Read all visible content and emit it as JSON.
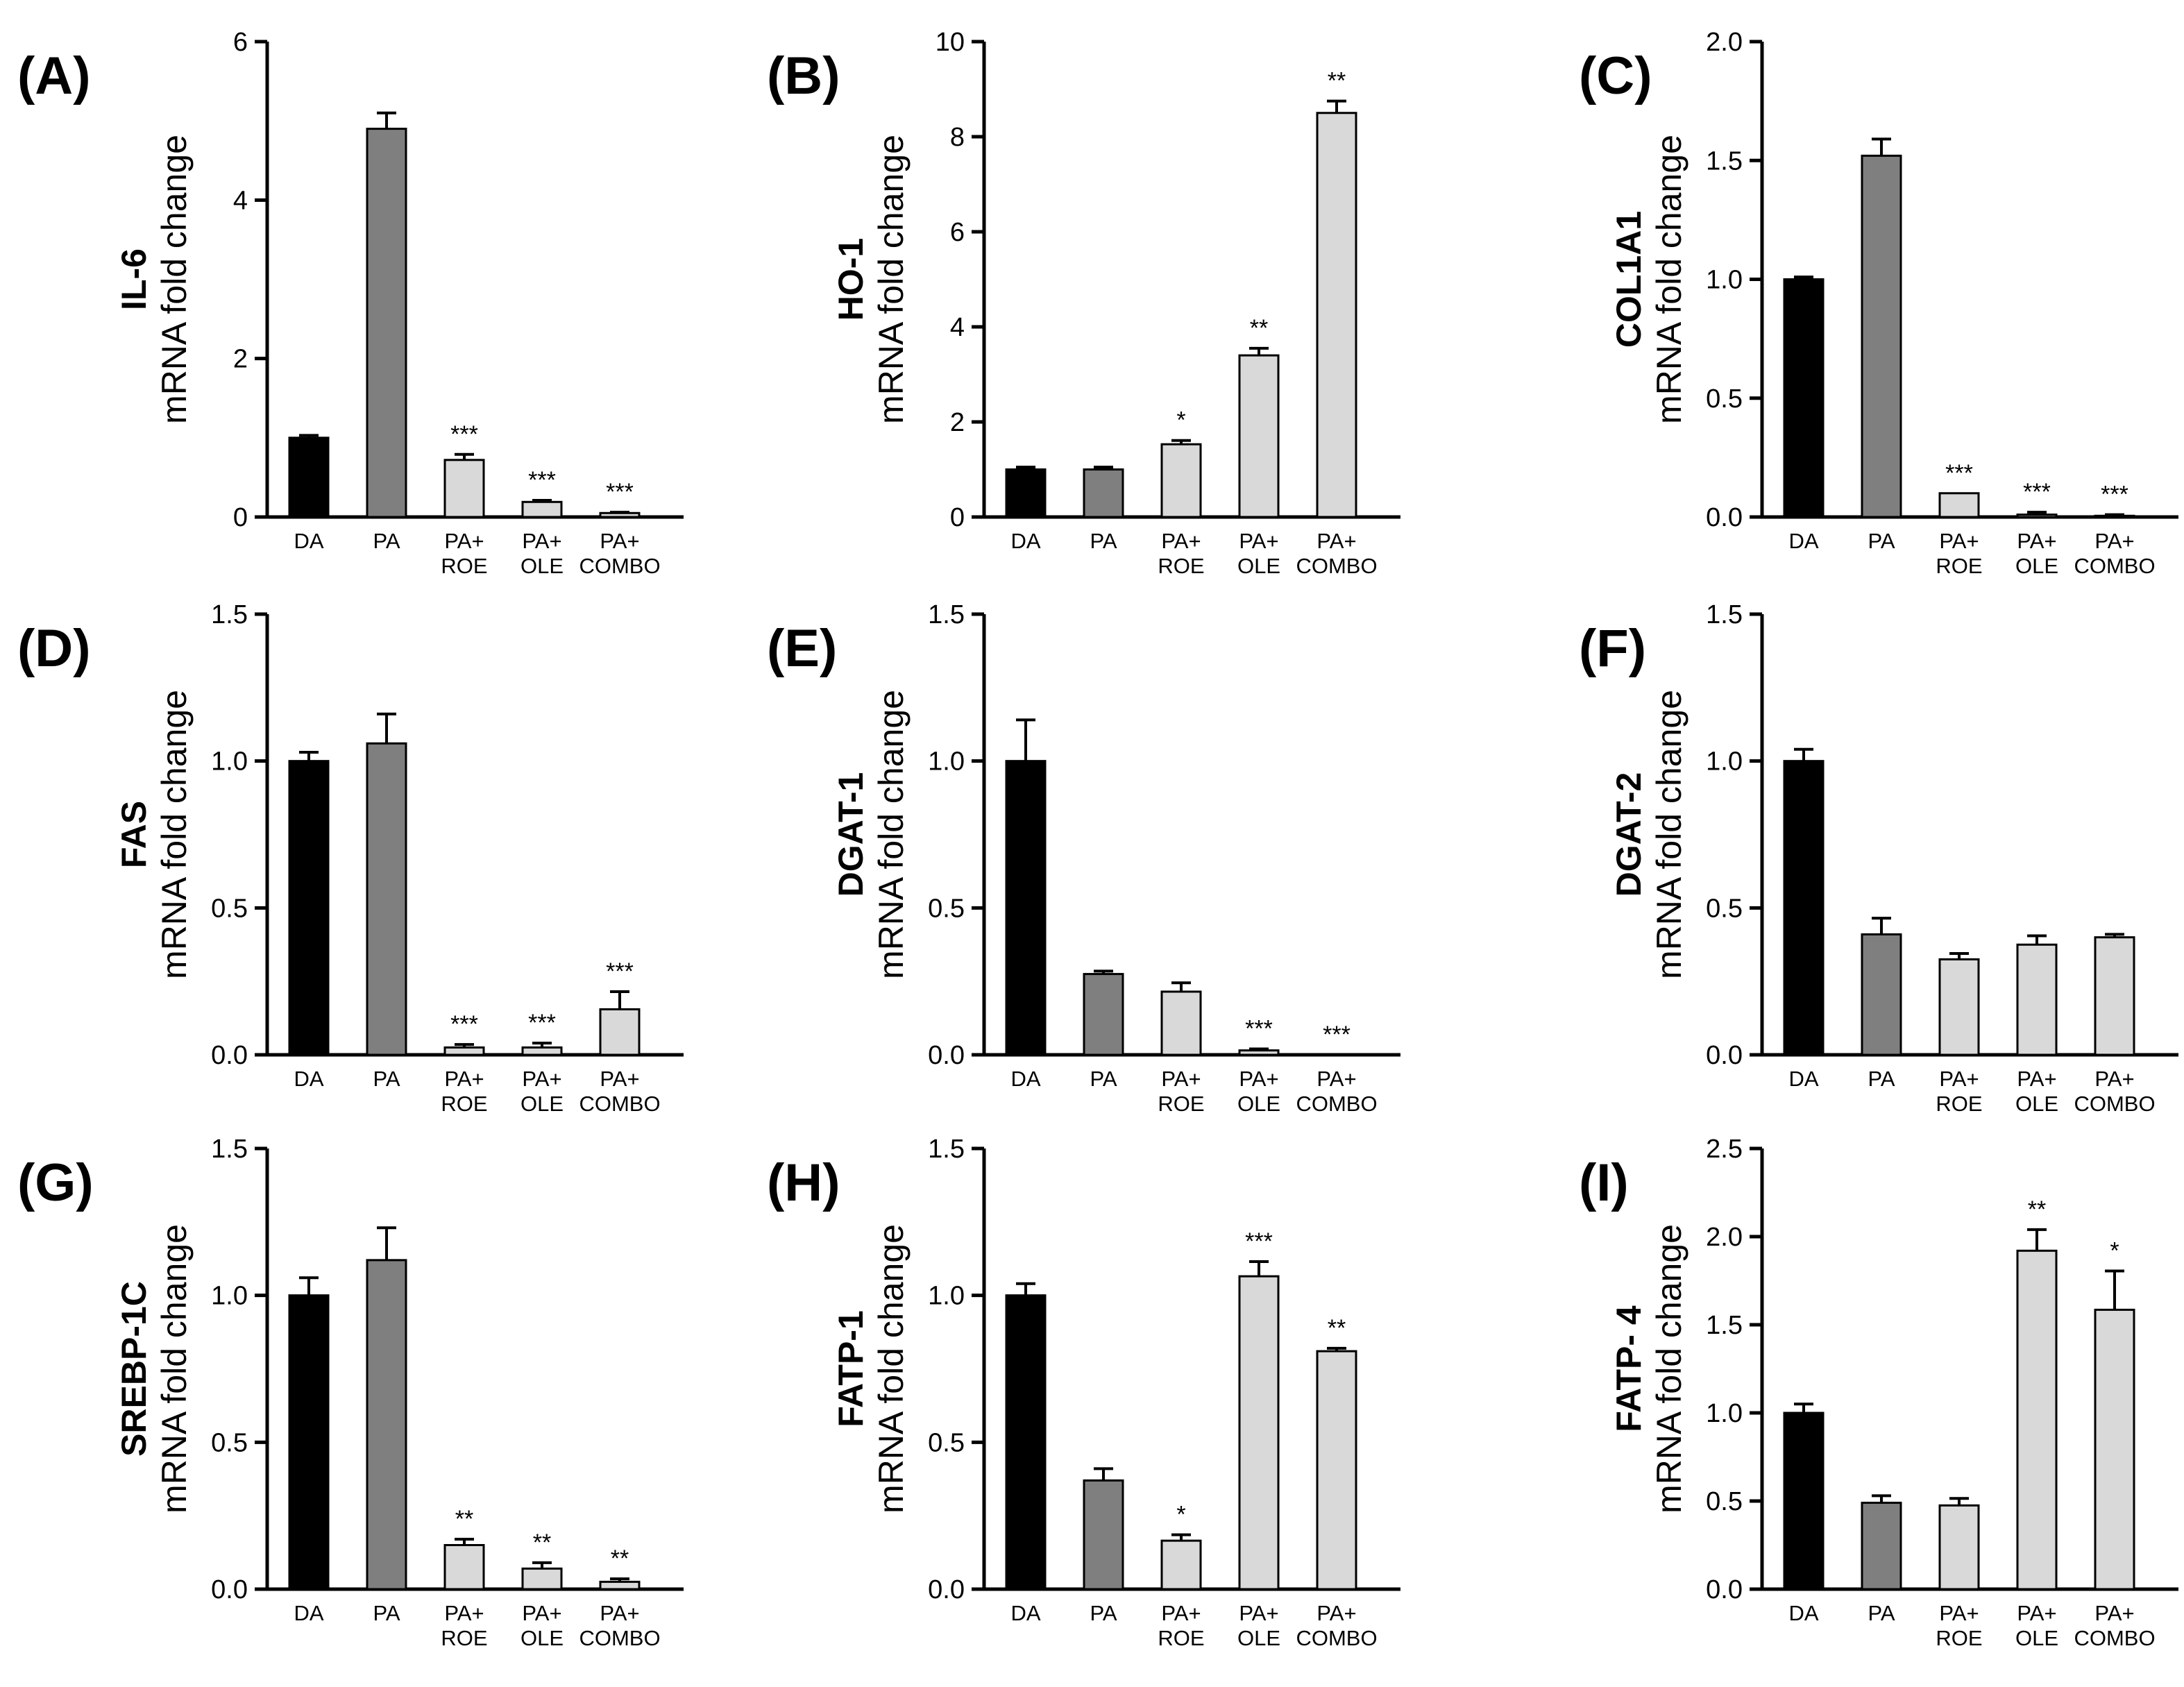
{
  "figure": {
    "axis_unit_label": "mRNA fold change",
    "bar_colors": {
      "DA": "#000000",
      "PA": "#7f7f7f",
      "treatment": "#d9d9d9"
    }
  },
  "chart_data": [
    {
      "type": "bar",
      "panel": "(A)",
      "gene": "IL-6",
      "ylabel": "mRNA fold change",
      "ylim": [
        0,
        6
      ],
      "yticks": [
        "0",
        "2",
        "4",
        "6"
      ],
      "categories": [
        [
          "DA"
        ],
        [
          "PA"
        ],
        [
          "PA+",
          "ROE"
        ],
        [
          "PA+",
          "OLE"
        ],
        [
          "PA+",
          "COMBO"
        ]
      ],
      "values": [
        1.0,
        4.9,
        0.72,
        0.19,
        0.05
      ],
      "errors": [
        0.03,
        0.2,
        0.07,
        0.02,
        0.01
      ],
      "significance": [
        "",
        "",
        "***",
        "***",
        "***"
      ]
    },
    {
      "type": "bar",
      "panel": "(B)",
      "gene": "HO-1",
      "ylabel": "mRNA fold change",
      "ylim": [
        0,
        10
      ],
      "yticks": [
        "0",
        "2",
        "4",
        "6",
        "8",
        "10"
      ],
      "categories": [
        [
          "DA"
        ],
        [
          "PA"
        ],
        [
          "PA+",
          "ROE"
        ],
        [
          "PA+",
          "OLE"
        ],
        [
          "PA+",
          "COMBO"
        ]
      ],
      "values": [
        1.0,
        1.0,
        1.53,
        3.4,
        8.5
      ],
      "errors": [
        0.05,
        0.05,
        0.08,
        0.15,
        0.25
      ],
      "significance": [
        "",
        "",
        "*",
        "**",
        "**"
      ]
    },
    {
      "type": "bar",
      "panel": "(C)",
      "gene": "COL1A1",
      "ylabel": "mRNA fold change",
      "ylim": [
        0,
        2.0
      ],
      "yticks": [
        "0.0",
        "0.5",
        "1.0",
        "1.5",
        "2.0"
      ],
      "categories": [
        [
          "DA"
        ],
        [
          "PA"
        ],
        [
          "PA+",
          "ROE"
        ],
        [
          "PA+",
          "OLE"
        ],
        [
          "PA+",
          "COMBO"
        ]
      ],
      "values": [
        1.0,
        1.52,
        0.1,
        0.01,
        0.005
      ],
      "errors": [
        0.01,
        0.07,
        0.0,
        0.01,
        0.005
      ],
      "significance": [
        "",
        "",
        "***",
        "***",
        "***"
      ]
    },
    {
      "type": "bar",
      "panel": "(D)",
      "gene": "FAS",
      "ylabel": "mRNA fold change",
      "ylim": [
        0,
        1.5
      ],
      "yticks": [
        "0.0",
        "0.5",
        "1.0",
        "1.5"
      ],
      "categories": [
        [
          "DA"
        ],
        [
          "PA"
        ],
        [
          "PA+",
          "ROE"
        ],
        [
          "PA+",
          "OLE"
        ],
        [
          "PA+",
          "COMBO"
        ]
      ],
      "values": [
        1.0,
        1.06,
        0.025,
        0.025,
        0.155
      ],
      "errors": [
        0.03,
        0.1,
        0.01,
        0.015,
        0.06
      ],
      "significance": [
        "",
        "",
        "***",
        "***",
        "***"
      ]
    },
    {
      "type": "bar",
      "panel": "(E)",
      "gene": "DGAT-1",
      "ylabel": "mRNA fold change",
      "ylim": [
        0,
        1.5
      ],
      "yticks": [
        "0.0",
        "0.5",
        "1.0",
        "1.5"
      ],
      "categories": [
        [
          "DA"
        ],
        [
          "PA"
        ],
        [
          "PA+",
          "ROE"
        ],
        [
          "PA+",
          "OLE"
        ],
        [
          "PA+",
          "COMBO"
        ]
      ],
      "values": [
        1.0,
        0.275,
        0.215,
        0.015,
        0.0
      ],
      "errors": [
        0.14,
        0.01,
        0.03,
        0.005,
        0.0
      ],
      "significance": [
        "",
        "",
        "",
        "***",
        "***"
      ]
    },
    {
      "type": "bar",
      "panel": "(F)",
      "gene": "DGAT-2",
      "ylabel": "mRNA fold change",
      "ylim": [
        0,
        1.5
      ],
      "yticks": [
        "0.0",
        "0.5",
        "1.0",
        "1.5"
      ],
      "categories": [
        [
          "DA"
        ],
        [
          "PA"
        ],
        [
          "PA+",
          "ROE"
        ],
        [
          "PA+",
          "OLE"
        ],
        [
          "PA+",
          "COMBO"
        ]
      ],
      "values": [
        1.0,
        0.41,
        0.325,
        0.375,
        0.4
      ],
      "errors": [
        0.04,
        0.055,
        0.02,
        0.03,
        0.01
      ],
      "significance": [
        "",
        "",
        "",
        "",
        ""
      ]
    },
    {
      "type": "bar",
      "panel": "(G)",
      "gene": "SREBP-1C",
      "ylabel": "mRNA fold change",
      "ylim": [
        0,
        1.5
      ],
      "yticks": [
        "0.0",
        "0.5",
        "1.0",
        "1.5"
      ],
      "categories": [
        [
          "DA"
        ],
        [
          "PA"
        ],
        [
          "PA+",
          "ROE"
        ],
        [
          "PA+",
          "OLE"
        ],
        [
          "PA+",
          "COMBO"
        ]
      ],
      "values": [
        1.0,
        1.12,
        0.15,
        0.07,
        0.025
      ],
      "errors": [
        0.06,
        0.11,
        0.02,
        0.02,
        0.01
      ],
      "significance": [
        "",
        "",
        "**",
        "**",
        "**"
      ]
    },
    {
      "type": "bar",
      "panel": "(H)",
      "gene": "FATP-1",
      "ylabel": "mRNA fold change",
      "ylim": [
        0,
        1.5
      ],
      "yticks": [
        "0.0",
        "0.5",
        "1.0",
        "1.5"
      ],
      "categories": [
        [
          "DA"
        ],
        [
          "PA"
        ],
        [
          "PA+",
          "ROE"
        ],
        [
          "PA+",
          "OLE"
        ],
        [
          "PA+",
          "COMBO"
        ]
      ],
      "values": [
        1.0,
        0.37,
        0.165,
        1.065,
        0.81
      ],
      "errors": [
        0.04,
        0.04,
        0.02,
        0.05,
        0.01
      ],
      "significance": [
        "",
        "",
        "*",
        "***",
        "**"
      ]
    },
    {
      "type": "bar",
      "panel": "(I)",
      "gene": "FATP- 4",
      "ylabel": "mRNA fold change",
      "ylim": [
        0,
        2.5
      ],
      "yticks": [
        "0.0",
        "0.5",
        "1.0",
        "1.5",
        "2.0",
        "2.5"
      ],
      "categories": [
        [
          "DA"
        ],
        [
          "PA"
        ],
        [
          "PA+",
          "ROE"
        ],
        [
          "PA+",
          "OLE"
        ],
        [
          "PA+",
          "COMBO"
        ]
      ],
      "values": [
        1.0,
        0.49,
        0.475,
        1.92,
        1.585
      ],
      "errors": [
        0.05,
        0.04,
        0.04,
        0.12,
        0.22
      ],
      "significance": [
        "",
        "",
        "",
        "**",
        "*"
      ]
    }
  ]
}
